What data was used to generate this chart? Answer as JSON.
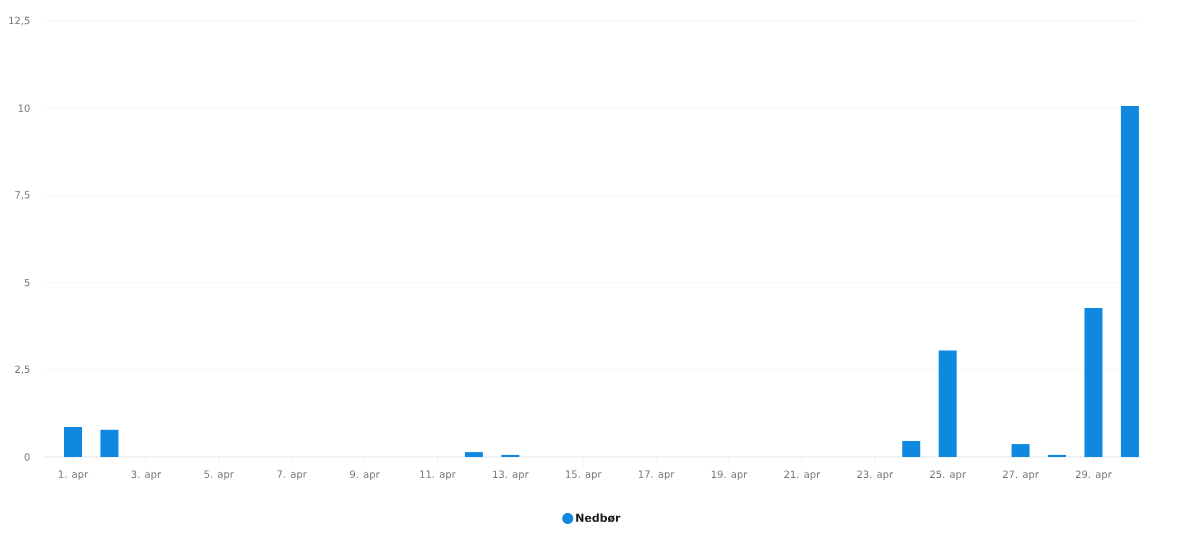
{
  "chart_data": {
    "type": "bar",
    "categories": [
      "1. apr",
      null,
      "3. apr",
      null,
      "5. apr",
      null,
      "7. apr",
      null,
      "9. apr",
      null,
      "11. apr",
      null,
      "13. apr",
      null,
      "15. apr",
      null,
      "17. apr",
      null,
      "19. apr",
      null,
      "21. apr",
      null,
      "23. apr",
      null,
      "25. apr",
      null,
      "27. apr",
      null,
      "29. apr",
      null
    ],
    "series": [
      {
        "name": "Nedbør",
        "color": "#0f88e0",
        "values": [
          0.86,
          0.78,
          0,
          0,
          0,
          0,
          0,
          0,
          0,
          0,
          0,
          0.14,
          0.06,
          0,
          0,
          0,
          0,
          0,
          0,
          0,
          0,
          0,
          0,
          0.46,
          3.05,
          0,
          0.37,
          0.06,
          4.27,
          10.06
        ]
      }
    ],
    "ylim": [
      0,
      12.5
    ],
    "yticks": [
      0,
      {
        "value": 2.5,
        "label": "2,5"
      },
      5,
      {
        "value": 7.5,
        "label": "7,5"
      },
      10,
      {
        "value": 12.5,
        "label": "12,5"
      }
    ],
    "grid": "y",
    "legend": "bottom"
  }
}
